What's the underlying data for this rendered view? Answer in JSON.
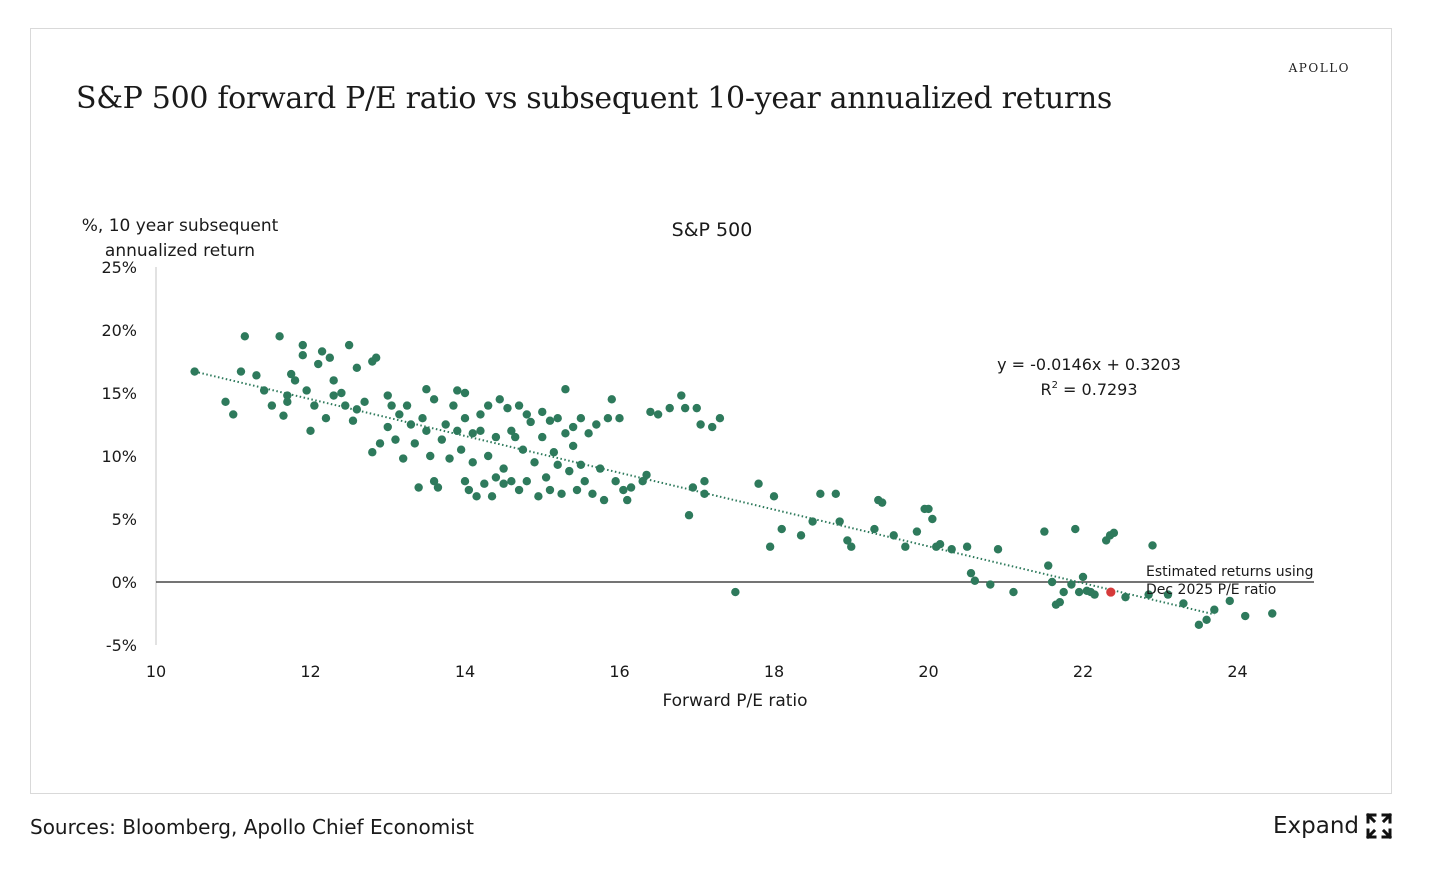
{
  "brand": "APOLLO",
  "title": "S&P 500 forward P/E ratio vs subsequent 10-year annualized returns",
  "footer": {
    "sources": "Sources: Bloomberg, Apollo Chief Economist",
    "expand_label": "Expand",
    "expand_icon": "expand-arrows-icon"
  },
  "colors": {
    "points": "#2e7a5c",
    "trendline": "#2e7a5c",
    "highlight": "#d63a3a",
    "axis": "#222222"
  },
  "chart_data": {
    "type": "scatter",
    "subtitle": "S&P 500",
    "ylabel_line1": "%, 10 year subsequent",
    "ylabel_line2": "annualized return",
    "xlabel": "Forward P/E ratio",
    "xlim": [
      10,
      25
    ],
    "ylim": [
      -5,
      25
    ],
    "x_ticks": [
      10,
      12,
      14,
      16,
      18,
      20,
      22,
      24
    ],
    "y_ticks": [
      {
        "value": 25,
        "label": "25%"
      },
      {
        "value": 20,
        "label": "20%"
      },
      {
        "value": 15,
        "label": "15%"
      },
      {
        "value": 10,
        "label": "10%"
      },
      {
        "value": 5,
        "label": "5%"
      },
      {
        "value": 0,
        "label": "0%"
      },
      {
        "value": -5,
        "label": "-5%"
      }
    ],
    "regression": {
      "slope": -0.0146,
      "intercept": 0.3203,
      "x_range": [
        10.5,
        23.7
      ],
      "equation": "y = -0.0146x + 0.3203",
      "r2_label": "R",
      "r2_exp": "2",
      "r2_value": " = 0.7293"
    },
    "annotation": {
      "line1": "Estimated returns using",
      "line2": "Dec 2025 P/E ratio"
    },
    "highlight_point": {
      "x": 22.36,
      "y": -0.8
    },
    "series": [
      {
        "points": [
          [
            10.5,
            16.7
          ],
          [
            10.9,
            14.3
          ],
          [
            11.0,
            13.3
          ],
          [
            11.1,
            16.7
          ],
          [
            11.15,
            19.5
          ],
          [
            11.3,
            16.4
          ],
          [
            11.4,
            15.2
          ],
          [
            11.5,
            14.0
          ],
          [
            11.6,
            19.5
          ],
          [
            11.65,
            13.2
          ],
          [
            11.7,
            14.3
          ],
          [
            11.7,
            14.8
          ],
          [
            11.75,
            16.5
          ],
          [
            11.8,
            16.0
          ],
          [
            11.9,
            18.0
          ],
          [
            11.9,
            18.8
          ],
          [
            11.95,
            15.2
          ],
          [
            12.0,
            12.0
          ],
          [
            12.05,
            14.0
          ],
          [
            12.1,
            17.3
          ],
          [
            12.15,
            18.3
          ],
          [
            12.2,
            13.0
          ],
          [
            12.25,
            17.8
          ],
          [
            12.3,
            14.8
          ],
          [
            12.3,
            16.0
          ],
          [
            12.4,
            15.0
          ],
          [
            12.45,
            14.0
          ],
          [
            12.5,
            18.8
          ],
          [
            12.55,
            12.8
          ],
          [
            12.6,
            13.7
          ],
          [
            12.6,
            17.0
          ],
          [
            12.7,
            14.3
          ],
          [
            12.8,
            17.5
          ],
          [
            12.85,
            17.8
          ],
          [
            12.8,
            10.3
          ],
          [
            12.9,
            11.0
          ],
          [
            13.0,
            12.3
          ],
          [
            13.0,
            14.8
          ],
          [
            13.05,
            14.0
          ],
          [
            13.1,
            11.3
          ],
          [
            13.15,
            13.3
          ],
          [
            13.2,
            9.8
          ],
          [
            13.25,
            14.0
          ],
          [
            13.3,
            12.5
          ],
          [
            13.35,
            11.0
          ],
          [
            13.4,
            7.5
          ],
          [
            13.45,
            13.0
          ],
          [
            13.5,
            15.3
          ],
          [
            13.5,
            12.0
          ],
          [
            13.55,
            10.0
          ],
          [
            13.6,
            14.5
          ],
          [
            13.6,
            8.0
          ],
          [
            13.65,
            7.5
          ],
          [
            13.7,
            11.3
          ],
          [
            13.75,
            12.5
          ],
          [
            13.8,
            9.8
          ],
          [
            13.85,
            14.0
          ],
          [
            13.9,
            15.2
          ],
          [
            13.9,
            12.0
          ],
          [
            13.95,
            10.5
          ],
          [
            14.0,
            15.0
          ],
          [
            14.0,
            13.0
          ],
          [
            14.0,
            8.0
          ],
          [
            14.05,
            7.3
          ],
          [
            14.1,
            9.5
          ],
          [
            14.1,
            11.8
          ],
          [
            14.15,
            6.8
          ],
          [
            14.2,
            12.0
          ],
          [
            14.2,
            13.3
          ],
          [
            14.25,
            7.8
          ],
          [
            14.3,
            14.0
          ],
          [
            14.3,
            10.0
          ],
          [
            14.35,
            6.8
          ],
          [
            14.4,
            11.5
          ],
          [
            14.4,
            8.3
          ],
          [
            14.45,
            14.5
          ],
          [
            14.5,
            7.8
          ],
          [
            14.5,
            9.0
          ],
          [
            14.55,
            13.8
          ],
          [
            14.6,
            12.0
          ],
          [
            14.6,
            8.0
          ],
          [
            14.65,
            11.5
          ],
          [
            14.7,
            7.3
          ],
          [
            14.7,
            14.0
          ],
          [
            14.75,
            10.5
          ],
          [
            14.8,
            13.3
          ],
          [
            14.8,
            8.0
          ],
          [
            14.85,
            12.7
          ],
          [
            14.9,
            9.5
          ],
          [
            14.95,
            6.8
          ],
          [
            15.0,
            13.5
          ],
          [
            15.0,
            11.5
          ],
          [
            15.05,
            8.3
          ],
          [
            15.1,
            7.3
          ],
          [
            15.1,
            12.8
          ],
          [
            15.15,
            10.3
          ],
          [
            15.2,
            9.3
          ],
          [
            15.2,
            13.0
          ],
          [
            15.25,
            7.0
          ],
          [
            15.3,
            11.8
          ],
          [
            15.3,
            15.3
          ],
          [
            15.35,
            8.8
          ],
          [
            15.4,
            12.3
          ],
          [
            15.4,
            10.8
          ],
          [
            15.45,
            7.3
          ],
          [
            15.5,
            13.0
          ],
          [
            15.5,
            9.3
          ],
          [
            15.55,
            8.0
          ],
          [
            15.6,
            11.8
          ],
          [
            15.65,
            7.0
          ],
          [
            15.7,
            12.5
          ],
          [
            15.75,
            9.0
          ],
          [
            15.8,
            6.5
          ],
          [
            15.85,
            13.0
          ],
          [
            15.9,
            14.5
          ],
          [
            15.95,
            8.0
          ],
          [
            16.0,
            13.0
          ],
          [
            16.05,
            7.3
          ],
          [
            16.1,
            6.5
          ],
          [
            16.15,
            7.5
          ],
          [
            16.3,
            8.0
          ],
          [
            16.35,
            8.5
          ],
          [
            16.4,
            13.5
          ],
          [
            16.5,
            13.3
          ],
          [
            16.65,
            13.8
          ],
          [
            16.8,
            14.8
          ],
          [
            16.85,
            13.8
          ],
          [
            16.9,
            5.3
          ],
          [
            16.95,
            7.5
          ],
          [
            17.0,
            13.8
          ],
          [
            17.05,
            12.5
          ],
          [
            17.1,
            8.0
          ],
          [
            17.1,
            7.0
          ],
          [
            17.2,
            12.3
          ],
          [
            17.3,
            13.0
          ],
          [
            17.5,
            -0.8
          ],
          [
            17.8,
            7.8
          ],
          [
            17.95,
            2.8
          ],
          [
            18.0,
            6.8
          ],
          [
            18.1,
            4.2
          ],
          [
            18.35,
            3.7
          ],
          [
            18.5,
            4.8
          ],
          [
            18.6,
            7.0
          ],
          [
            18.8,
            7.0
          ],
          [
            18.85,
            4.8
          ],
          [
            18.95,
            3.3
          ],
          [
            19.0,
            2.8
          ],
          [
            19.3,
            4.2
          ],
          [
            19.35,
            6.5
          ],
          [
            19.4,
            6.3
          ],
          [
            19.55,
            3.7
          ],
          [
            19.7,
            2.8
          ],
          [
            19.85,
            4.0
          ],
          [
            19.95,
            5.8
          ],
          [
            20.0,
            5.8
          ],
          [
            20.05,
            5.0
          ],
          [
            20.1,
            2.8
          ],
          [
            20.15,
            3.0
          ],
          [
            20.3,
            2.6
          ],
          [
            20.5,
            2.8
          ],
          [
            20.55,
            0.7
          ],
          [
            20.6,
            0.1
          ],
          [
            20.8,
            -0.2
          ],
          [
            20.9,
            2.6
          ],
          [
            21.1,
            -0.8
          ],
          [
            21.5,
            4.0
          ],
          [
            21.55,
            1.3
          ],
          [
            21.6,
            0.0
          ],
          [
            21.65,
            -1.8
          ],
          [
            21.7,
            -1.6
          ],
          [
            21.75,
            -0.8
          ],
          [
            21.85,
            -0.2
          ],
          [
            21.9,
            4.2
          ],
          [
            21.95,
            -0.8
          ],
          [
            22.0,
            0.4
          ],
          [
            22.05,
            -0.7
          ],
          [
            22.1,
            -0.8
          ],
          [
            22.15,
            -1.0
          ],
          [
            22.3,
            3.3
          ],
          [
            22.35,
            3.7
          ],
          [
            22.4,
            3.9
          ],
          [
            22.55,
            -1.2
          ],
          [
            22.85,
            -1.0
          ],
          [
            22.9,
            2.9
          ],
          [
            23.1,
            -1.0
          ],
          [
            23.3,
            -1.7
          ],
          [
            23.5,
            -3.4
          ],
          [
            23.6,
            -3.0
          ],
          [
            23.7,
            -2.2
          ],
          [
            23.9,
            -1.5
          ],
          [
            24.1,
            -2.7
          ],
          [
            24.45,
            -2.5
          ]
        ]
      }
    ]
  }
}
